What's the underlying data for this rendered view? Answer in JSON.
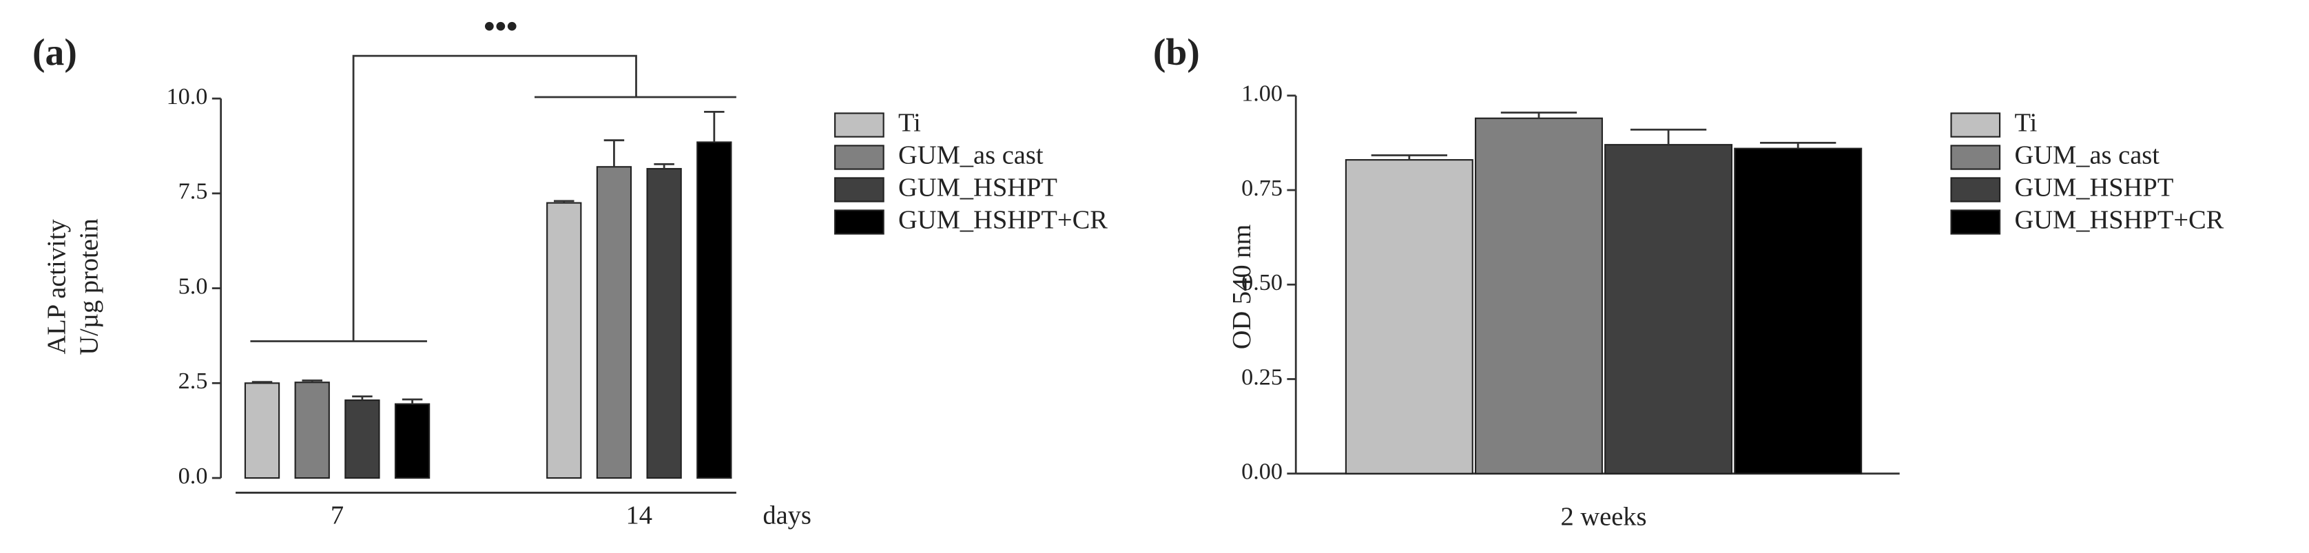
{
  "chart_data": [
    {
      "type": "bar",
      "title": "(a)",
      "ylabel": [
        "ALP activity",
        "U/µg protein"
      ],
      "xlabel": "days",
      "annotation": "•••",
      "categories": [
        "7",
        "14"
      ],
      "series": [
        {
          "name": "Ti",
          "color": "#c0c0c0",
          "values": [
            2.5,
            7.25
          ],
          "errors": [
            0.03,
            0.05
          ]
        },
        {
          "name": "GUM_as cast",
          "color": "#808080",
          "values": [
            2.52,
            8.2
          ],
          "errors": [
            0.05,
            0.7
          ]
        },
        {
          "name": "GUM_HSHPT",
          "color": "#404040",
          "values": [
            2.05,
            8.15
          ],
          "errors": [
            0.1,
            0.12
          ]
        },
        {
          "name": "GUM_HSHPT+CR",
          "color": "#000000",
          "values": [
            1.95,
            8.85
          ],
          "errors": [
            0.12,
            0.8
          ]
        }
      ],
      "ylim": [
        0,
        10
      ],
      "yticks": [
        {
          "value": 0,
          "label": "0.0"
        },
        {
          "value": 2.5,
          "label": "2.5"
        },
        {
          "value": 5,
          "label": "5.0"
        },
        {
          "value": 7.5,
          "label": "7.5"
        },
        {
          "value": 10,
          "label": "10.0"
        }
      ]
    },
    {
      "type": "bar",
      "title": "(b)",
      "ylabel": [
        "OD 540 nm"
      ],
      "categories": [
        "2 weeks"
      ],
      "series": [
        {
          "name": "Ti",
          "color": "#c0c0c0",
          "values": [
            0.83
          ],
          "errors": [
            0.012
          ]
        },
        {
          "name": "GUM_as cast",
          "color": "#808080",
          "values": [
            0.94
          ],
          "errors": [
            0.015
          ]
        },
        {
          "name": "GUM_HSHPT",
          "color": "#404040",
          "values": [
            0.87
          ],
          "errors": [
            0.04
          ]
        },
        {
          "name": "GUM_HSHPT+CR",
          "color": "#000000",
          "values": [
            0.86
          ],
          "errors": [
            0.015
          ]
        }
      ],
      "ylim": [
        0,
        1
      ],
      "yticks": [
        {
          "value": 0,
          "label": "0.00"
        },
        {
          "value": 0.25,
          "label": "0.25"
        },
        {
          "value": 0.5,
          "label": "0.50"
        },
        {
          "value": 0.75,
          "label": "0.75"
        },
        {
          "value": 1,
          "label": "1.00"
        }
      ]
    }
  ]
}
